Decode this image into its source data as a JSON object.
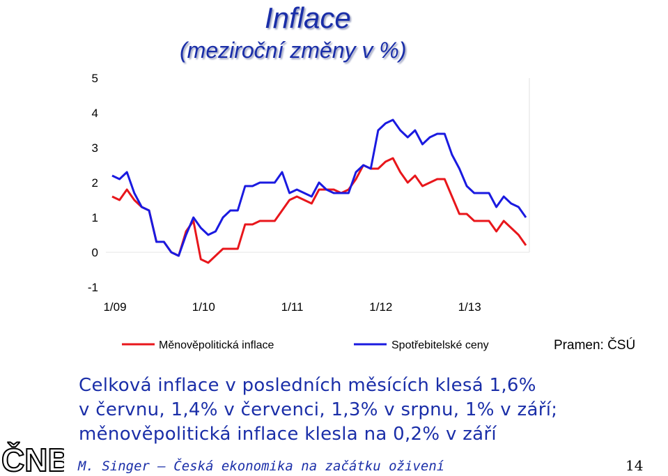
{
  "title": "Inflace",
  "subtitle": "(meziroční změny v %)",
  "source": "Pramen: ČSÚ",
  "body_lines": [
    "Celková inflace v posledních měsících klesá 1,6%",
    "v červnu, 1,4% v červenci, 1,3% v srpnu, 1% v září;",
    "měnověpolitická inflace klesla na 0,2% v září"
  ],
  "footer": "M. Singer – Česká ekonomika na začátku oživení",
  "page_number": "14",
  "logo_text": "ČNB",
  "chart_data": {
    "type": "line",
    "title": "Inflace",
    "subtitle": "(meziroční změny v %)",
    "ylim": [
      -1,
      5
    ],
    "yticks": [
      "-1",
      "0",
      "1",
      "2",
      "3",
      "4",
      "5"
    ],
    "x_tick_labels": [
      "1/09",
      "1/10",
      "1/11",
      "1/12",
      "1/13"
    ],
    "x_tick_index": [
      0,
      12,
      24,
      36,
      48
    ],
    "grid": false,
    "legend_position": "bottom",
    "series": [
      {
        "name": "Měnověpolitická inflace",
        "color": "#e8161b",
        "values": [
          1.6,
          1.5,
          1.8,
          1.5,
          1.3,
          1.2,
          0.3,
          0.3,
          0.0,
          -0.1,
          0.6,
          0.9,
          -0.2,
          -0.3,
          -0.1,
          0.1,
          0.1,
          0.1,
          0.8,
          0.8,
          0.9,
          0.9,
          0.9,
          1.2,
          1.5,
          1.6,
          1.5,
          1.4,
          1.8,
          1.8,
          1.8,
          1.7,
          1.8,
          2.1,
          2.5,
          2.4,
          2.4,
          2.6,
          2.7,
          2.3,
          2.0,
          2.2,
          1.9,
          2.0,
          2.1,
          2.1,
          1.6,
          1.1,
          1.1,
          0.9,
          0.9,
          0.9,
          0.6,
          0.9,
          0.7,
          0.5,
          0.2
        ]
      },
      {
        "name": "Spotřebitelské ceny",
        "color": "#1a1ae0",
        "values": [
          2.2,
          2.1,
          2.3,
          1.7,
          1.3,
          1.2,
          0.3,
          0.3,
          0.0,
          -0.1,
          0.5,
          1.0,
          0.7,
          0.5,
          0.6,
          1.0,
          1.2,
          1.2,
          1.9,
          1.9,
          2.0,
          2.0,
          2.0,
          2.3,
          1.7,
          1.8,
          1.7,
          1.6,
          2.0,
          1.8,
          1.7,
          1.7,
          1.7,
          2.3,
          2.5,
          2.4,
          3.5,
          3.7,
          3.8,
          3.5,
          3.3,
          3.5,
          3.1,
          3.3,
          3.4,
          3.4,
          2.8,
          2.4,
          1.9,
          1.7,
          1.7,
          1.7,
          1.3,
          1.6,
          1.4,
          1.3,
          1.0
        ]
      }
    ]
  }
}
